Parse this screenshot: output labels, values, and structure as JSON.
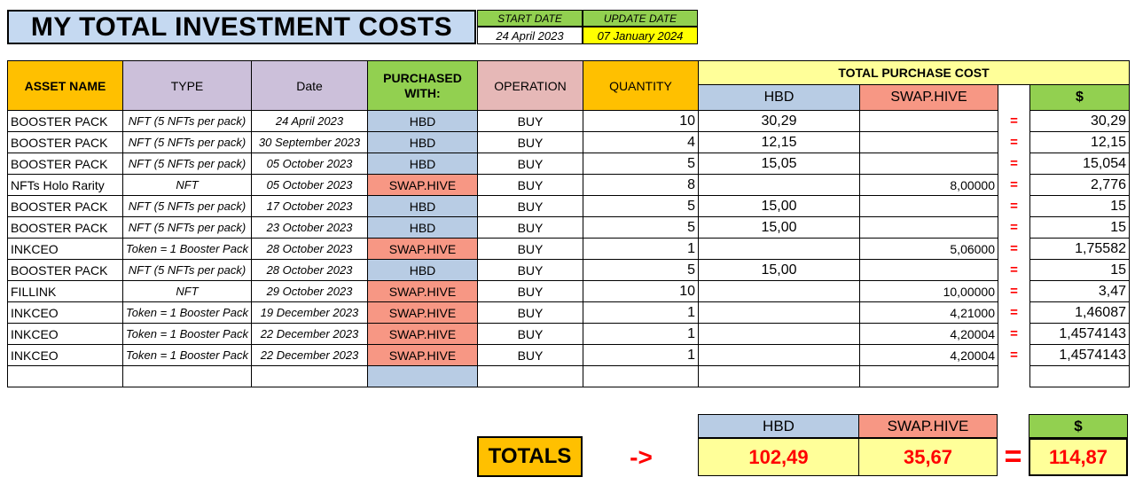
{
  "header": {
    "title": "MY TOTAL INVESTMENT COSTS",
    "start_date_label": "START DATE",
    "start_date": "24 April 2023",
    "update_date_label": "UPDATE DATE",
    "update_date": "07 January 2024"
  },
  "columns": {
    "asset_name": "ASSET NAME",
    "type": "TYPE",
    "date": "Date",
    "purchased_with": "PURCHASED WITH:",
    "operation": "OPERATION",
    "quantity": "QUANTITY",
    "total_purchase_cost": "TOTAL PURCHASE COST",
    "hbd": "HBD",
    "swap_hive": "SWAP.HIVE",
    "dollar": "$"
  },
  "equals_sign": "=",
  "rows": [
    {
      "asset": "BOOSTER PACK",
      "type": "NFT (5 NFTs per pack)",
      "date": "24 April 2023",
      "with": "HBD",
      "op": "BUY",
      "qty": "10",
      "hbd": "30,29",
      "swap": "",
      "usd": "30,29"
    },
    {
      "asset": "BOOSTER PACK",
      "type": "NFT (5 NFTs per pack)",
      "date": "30 September 2023",
      "with": "HBD",
      "op": "BUY",
      "qty": "4",
      "hbd": "12,15",
      "swap": "",
      "usd": "12,15"
    },
    {
      "asset": "BOOSTER PACK",
      "type": "NFT (5 NFTs per pack)",
      "date": "05 October 2023",
      "with": "HBD",
      "op": "BUY",
      "qty": "5",
      "hbd": "15,05",
      "swap": "",
      "usd": "15,054"
    },
    {
      "asset": "NFTs Holo Rarity",
      "type": "NFT",
      "date": "05 October 2023",
      "with": "SWAP.HIVE",
      "op": "BUY",
      "qty": "8",
      "hbd": "",
      "swap": "8,00000",
      "usd": "2,776"
    },
    {
      "asset": "BOOSTER PACK",
      "type": "NFT (5 NFTs per pack)",
      "date": "17 October 2023",
      "with": "HBD",
      "op": "BUY",
      "qty": "5",
      "hbd": "15,00",
      "swap": "",
      "usd": "15"
    },
    {
      "asset": "BOOSTER PACK",
      "type": "NFT (5 NFTs per pack)",
      "date": "23 October 2023",
      "with": "HBD",
      "op": "BUY",
      "qty": "5",
      "hbd": "15,00",
      "swap": "",
      "usd": "15"
    },
    {
      "asset": "INKCEO",
      "type": "Token = 1 Booster Pack",
      "date": "28 October 2023",
      "with": "SWAP.HIVE",
      "op": "BUY",
      "qty": "1",
      "hbd": "",
      "swap": "5,06000",
      "usd": "1,75582"
    },
    {
      "asset": "BOOSTER PACK",
      "type": "NFT (5 NFTs per pack)",
      "date": "28 October 2023",
      "with": "HBD",
      "op": "BUY",
      "qty": "5",
      "hbd": "15,00",
      "swap": "",
      "usd": "15"
    },
    {
      "asset": "FILLINK",
      "type": "NFT",
      "date": "29 October 2023",
      "with": "SWAP.HIVE",
      "op": "BUY",
      "qty": "10",
      "hbd": "",
      "swap": "10,00000",
      "usd": "3,47"
    },
    {
      "asset": "INKCEO",
      "type": "Token = 1 Booster Pack",
      "date": "19 December 2023",
      "with": "SWAP.HIVE",
      "op": "BUY",
      "qty": "1",
      "hbd": "",
      "swap": "4,21000",
      "usd": "1,46087"
    },
    {
      "asset": "INKCEO",
      "type": "Token = 1 Booster Pack",
      "date": "22 December 2023",
      "with": "SWAP.HIVE",
      "op": "BUY",
      "qty": "1",
      "hbd": "",
      "swap": "4,20004",
      "usd": "1,4574143"
    },
    {
      "asset": "INKCEO",
      "type": "Token = 1 Booster Pack",
      "date": "22 December 2023",
      "with": "SWAP.HIVE",
      "op": "BUY",
      "qty": "1",
      "hbd": "",
      "swap": "4,20004",
      "usd": "1,4574143"
    }
  ],
  "totals": {
    "label": "TOTALS",
    "arrow": "->",
    "hbd_label": "HBD",
    "swap_label": "SWAP.HIVE",
    "usd_label": "$",
    "hbd": "102,49",
    "swap": "35,67",
    "equals": "=",
    "usd": "114,87"
  },
  "colors": {
    "orange": "#ffc000",
    "purple": "#ccc0da",
    "pink": "#e6b8b7",
    "yellow": "#ffff99",
    "blue": "#b8cce4",
    "salmon": "#f79784",
    "green": "#92d050",
    "red": "#ff0000"
  }
}
